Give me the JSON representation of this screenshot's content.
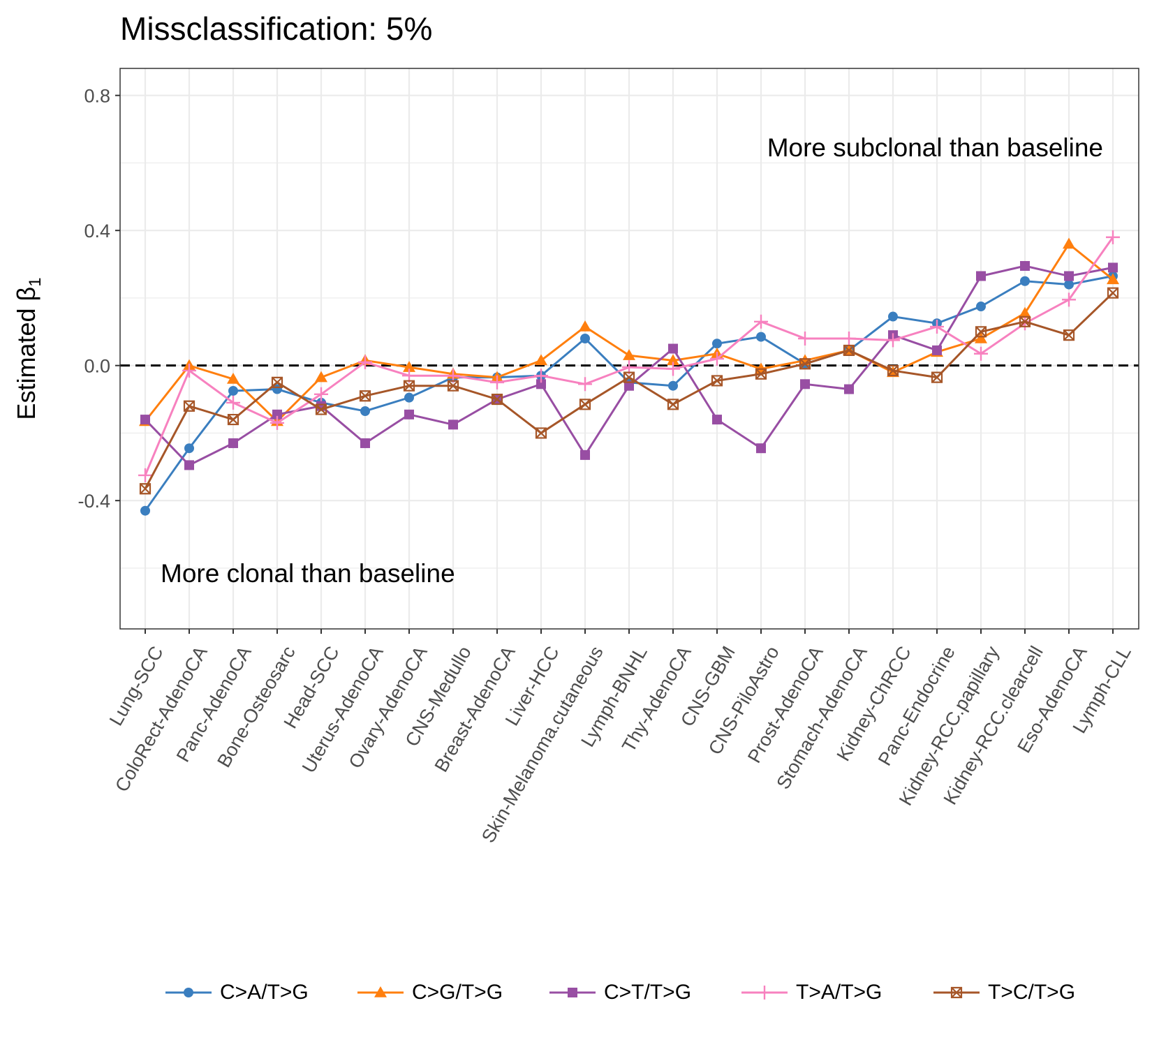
{
  "title": "Missclassification: 5%",
  "chart_data": {
    "type": "line",
    "title": "Missclassification: 5%",
    "ylabel": "Estimated β",
    "ylabel_subscript": "1",
    "xlabel": "",
    "ylim": [
      -0.78,
      0.88
    ],
    "yticks": [
      -0.4,
      0.0,
      0.4,
      0.8
    ],
    "ytick_labels": [
      "-0.4",
      "0.0",
      "0.4",
      "0.8"
    ],
    "grid": true,
    "legend_position": "bottom",
    "reference_line": 0,
    "annotations": [
      "More subclonal than baseline",
      "More clonal than baseline"
    ],
    "categories": [
      "Lung-SCC",
      "ColoRect-AdenoCA",
      "Panc-AdenoCA",
      "Bone-Osteosarc",
      "Head-SCC",
      "Uterus-AdenoCA",
      "Ovary-AdenoCA",
      "CNS-Medullo",
      "Breast-AdenoCA",
      "Liver-HCC",
      "Skin-Melanoma.cutaneous",
      "Lymph-BNHL",
      "Thy-AdenoCA",
      "CNS-GBM",
      "CNS-PiloAstro",
      "Prost-AdenoCA",
      "Stomach-AdenoCA",
      "Kidney-ChRCC",
      "Panc-Endocrine",
      "Kidney-RCC.papillary",
      "Kidney-RCC.clearcell",
      "Eso-AdenoCA",
      "Lymph-CLL"
    ],
    "series": [
      {
        "name": "C>A/T>G",
        "color": "#3a7ebf",
        "marker": "circle",
        "values": [
          -0.43,
          -0.245,
          -0.075,
          -0.07,
          -0.11,
          -0.135,
          -0.095,
          -0.035,
          -0.035,
          -0.03,
          0.08,
          -0.05,
          -0.06,
          0.065,
          0.085,
          0.005,
          0.045,
          0.145,
          0.125,
          0.175,
          0.25,
          0.24,
          0.265
        ]
      },
      {
        "name": "C>G/T>G",
        "color": "#ff7f0e",
        "marker": "triangle",
        "values": [
          -0.165,
          0.0,
          -0.04,
          -0.165,
          -0.035,
          0.015,
          -0.005,
          -0.025,
          -0.035,
          0.015,
          0.115,
          0.03,
          0.015,
          0.035,
          -0.01,
          0.015,
          0.045,
          -0.02,
          0.04,
          0.08,
          0.155,
          0.36,
          0.255
        ]
      },
      {
        "name": "C>T/T>G",
        "color": "#984ea3",
        "marker": "square",
        "values": [
          -0.16,
          -0.295,
          -0.23,
          -0.145,
          -0.12,
          -0.23,
          -0.145,
          -0.175,
          -0.1,
          -0.055,
          -0.265,
          -0.06,
          0.05,
          -0.16,
          -0.245,
          -0.055,
          -0.07,
          0.09,
          0.045,
          0.265,
          0.295,
          0.265,
          0.29
        ]
      },
      {
        "name": "T>A/T>G",
        "color": "#f781bf",
        "marker": "plus",
        "values": [
          -0.325,
          -0.015,
          -0.11,
          -0.17,
          -0.085,
          0.01,
          -0.03,
          -0.03,
          -0.05,
          -0.03,
          -0.055,
          -0.005,
          -0.01,
          0.02,
          0.13,
          0.08,
          0.08,
          0.075,
          0.115,
          0.035,
          0.125,
          0.195,
          0.38
        ]
      },
      {
        "name": "T>C/T>G",
        "color": "#a65628",
        "marker": "boxx",
        "values": [
          -0.365,
          -0.12,
          -0.16,
          -0.05,
          -0.13,
          -0.09,
          -0.06,
          -0.06,
          -0.1,
          -0.2,
          -0.115,
          -0.035,
          -0.115,
          -0.045,
          -0.025,
          0.005,
          0.045,
          -0.015,
          -0.035,
          0.1,
          0.13,
          0.09,
          0.215
        ]
      }
    ]
  }
}
